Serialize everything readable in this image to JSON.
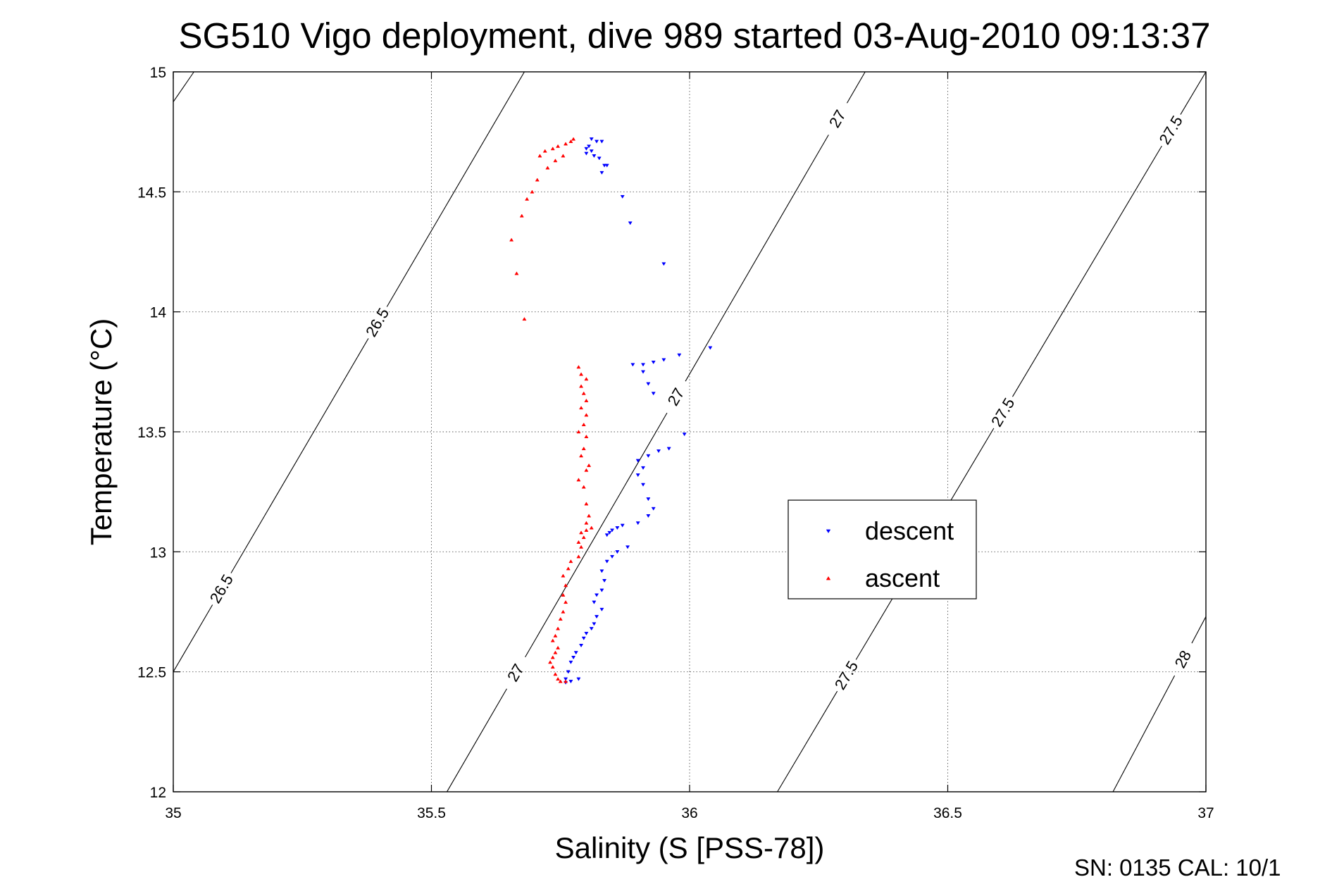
{
  "chart_data": {
    "type": "scatter",
    "title": "SG510 Vigo deployment, dive 989 started 03-Aug-2010 09:13:37",
    "xlabel": "Salinity (S [PSS-78])",
    "ylabel": "Temperature (°C)",
    "xlim": [
      35,
      37
    ],
    "ylim": [
      12,
      15
    ],
    "xticks": [
      "35",
      "35.5",
      "36",
      "36.5",
      "37"
    ],
    "yticks": [
      "12",
      "12.5",
      "13",
      "13.5",
      "14",
      "14.5",
      "15"
    ],
    "grid": true,
    "legend_position": "center-right",
    "footer": "SN: 0135  CAL: 10/1",
    "series": [
      {
        "name": "descent",
        "color": "#0000ff",
        "marker": "triangle-down",
        "points": [
          [
            35.81,
            14.72
          ],
          [
            35.82,
            14.71
          ],
          [
            35.83,
            14.71
          ],
          [
            35.805,
            14.69
          ],
          [
            35.8,
            14.68
          ],
          [
            35.81,
            14.67
          ],
          [
            35.8,
            14.66
          ],
          [
            35.815,
            14.65
          ],
          [
            35.825,
            14.64
          ],
          [
            35.835,
            14.61
          ],
          [
            35.84,
            14.61
          ],
          [
            35.83,
            14.58
          ],
          [
            35.87,
            14.48
          ],
          [
            35.885,
            14.37
          ],
          [
            35.95,
            14.2
          ],
          [
            36.04,
            13.85
          ],
          [
            35.98,
            13.82
          ],
          [
            35.95,
            13.8
          ],
          [
            35.93,
            13.79
          ],
          [
            35.91,
            13.78
          ],
          [
            35.89,
            13.78
          ],
          [
            35.91,
            13.75
          ],
          [
            35.92,
            13.7
          ],
          [
            35.93,
            13.66
          ],
          [
            35.99,
            13.49
          ],
          [
            35.96,
            13.43
          ],
          [
            35.94,
            13.42
          ],
          [
            35.92,
            13.4
          ],
          [
            35.9,
            13.38
          ],
          [
            35.91,
            13.35
          ],
          [
            35.9,
            13.32
          ],
          [
            35.91,
            13.28
          ],
          [
            35.92,
            13.22
          ],
          [
            35.93,
            13.18
          ],
          [
            35.92,
            13.15
          ],
          [
            35.9,
            13.12
          ],
          [
            35.87,
            13.11
          ],
          [
            35.86,
            13.1
          ],
          [
            35.85,
            13.09
          ],
          [
            35.845,
            13.08
          ],
          [
            35.84,
            13.07
          ],
          [
            35.88,
            13.02
          ],
          [
            35.86,
            13
          ],
          [
            35.85,
            12.98
          ],
          [
            35.84,
            12.96
          ],
          [
            35.83,
            12.92
          ],
          [
            35.835,
            12.88
          ],
          [
            35.83,
            12.84
          ],
          [
            35.82,
            12.82
          ],
          [
            35.815,
            12.79
          ],
          [
            35.83,
            12.76
          ],
          [
            35.82,
            12.73
          ],
          [
            35.815,
            12.7
          ],
          [
            35.81,
            12.68
          ],
          [
            35.8,
            12.66
          ],
          [
            35.795,
            12.64
          ],
          [
            35.79,
            12.61
          ],
          [
            35.78,
            12.58
          ],
          [
            35.775,
            12.56
          ],
          [
            35.77,
            12.54
          ],
          [
            35.765,
            12.5
          ],
          [
            35.76,
            12.47
          ],
          [
            35.785,
            12.47
          ],
          [
            35.77,
            12.46
          ],
          [
            35.76,
            12.455
          ]
        ]
      },
      {
        "name": "ascent",
        "color": "#ff0000",
        "marker": "triangle-up",
        "points": [
          [
            35.775,
            14.72
          ],
          [
            35.77,
            14.71
          ],
          [
            35.76,
            14.7
          ],
          [
            35.745,
            14.69
          ],
          [
            35.735,
            14.68
          ],
          [
            35.72,
            14.67
          ],
          [
            35.71,
            14.65
          ],
          [
            35.755,
            14.65
          ],
          [
            35.74,
            14.63
          ],
          [
            35.725,
            14.6
          ],
          [
            35.705,
            14.55
          ],
          [
            35.695,
            14.5
          ],
          [
            35.685,
            14.47
          ],
          [
            35.675,
            14.4
          ],
          [
            35.655,
            14.3
          ],
          [
            35.665,
            14.16
          ],
          [
            35.68,
            13.97
          ],
          [
            35.785,
            13.77
          ],
          [
            35.79,
            13.74
          ],
          [
            35.8,
            13.72
          ],
          [
            35.79,
            13.69
          ],
          [
            35.795,
            13.66
          ],
          [
            35.8,
            13.63
          ],
          [
            35.79,
            13.6
          ],
          [
            35.8,
            13.57
          ],
          [
            35.795,
            13.53
          ],
          [
            35.785,
            13.5
          ],
          [
            35.8,
            13.48
          ],
          [
            35.795,
            13.43
          ],
          [
            35.79,
            13.4
          ],
          [
            35.805,
            13.36
          ],
          [
            35.8,
            13.34
          ],
          [
            35.785,
            13.3
          ],
          [
            35.795,
            13.27
          ],
          [
            35.8,
            13.2
          ],
          [
            35.805,
            13.15
          ],
          [
            35.8,
            13.12
          ],
          [
            35.81,
            13.1
          ],
          [
            35.8,
            13.09
          ],
          [
            35.79,
            13.08
          ],
          [
            35.795,
            13.06
          ],
          [
            35.785,
            13.04
          ],
          [
            35.79,
            13.02
          ],
          [
            35.785,
            12.98
          ],
          [
            35.77,
            12.96
          ],
          [
            35.765,
            12.93
          ],
          [
            35.755,
            12.9
          ],
          [
            35.76,
            12.86
          ],
          [
            35.755,
            12.82
          ],
          [
            35.76,
            12.79
          ],
          [
            35.755,
            12.75
          ],
          [
            35.75,
            12.72
          ],
          [
            35.745,
            12.68
          ],
          [
            35.74,
            12.65
          ],
          [
            35.735,
            12.63
          ],
          [
            35.745,
            12.6
          ],
          [
            35.74,
            12.58
          ],
          [
            35.735,
            12.56
          ],
          [
            35.73,
            12.54
          ],
          [
            35.735,
            12.52
          ],
          [
            35.74,
            12.49
          ],
          [
            35.745,
            12.47
          ],
          [
            35.75,
            12.46
          ],
          [
            35.76,
            12.46
          ]
        ]
      }
    ],
    "isopycnals": [
      {
        "label": "26.5",
        "points": [
          [
            35,
            14.875
          ],
          [
            35.04,
            15
          ]
        ],
        "labels_at": []
      },
      {
        "label": "26.5",
        "points": [
          [
            35,
            12.5
          ],
          [
            35.68,
            15
          ]
        ],
        "labels_at": [
          [
            35.4,
            13.95
          ],
          [
            35.09,
            12.85
          ]
        ]
      },
      {
        "label": "27",
        "points": [
          [
            35.53,
            12
          ],
          [
            36.34,
            15
          ]
        ],
        "labels_at": [
          [
            36.29,
            14.8
          ],
          [
            35.97,
            13.65
          ],
          [
            35.66,
            12.5
          ]
        ]
      },
      {
        "label": "27.5",
        "points": [
          [
            36.17,
            12
          ],
          [
            37,
            15
          ]
        ],
        "labels_at": [
          [
            36.93,
            14.76
          ],
          [
            36.6,
            13.59
          ],
          [
            36.3,
            12.49
          ]
        ]
      },
      {
        "label": "28",
        "points": [
          [
            36.82,
            12
          ],
          [
            37,
            12.73
          ]
        ],
        "labels_at": [
          [
            36.94,
            12.57
          ]
        ]
      }
    ]
  }
}
